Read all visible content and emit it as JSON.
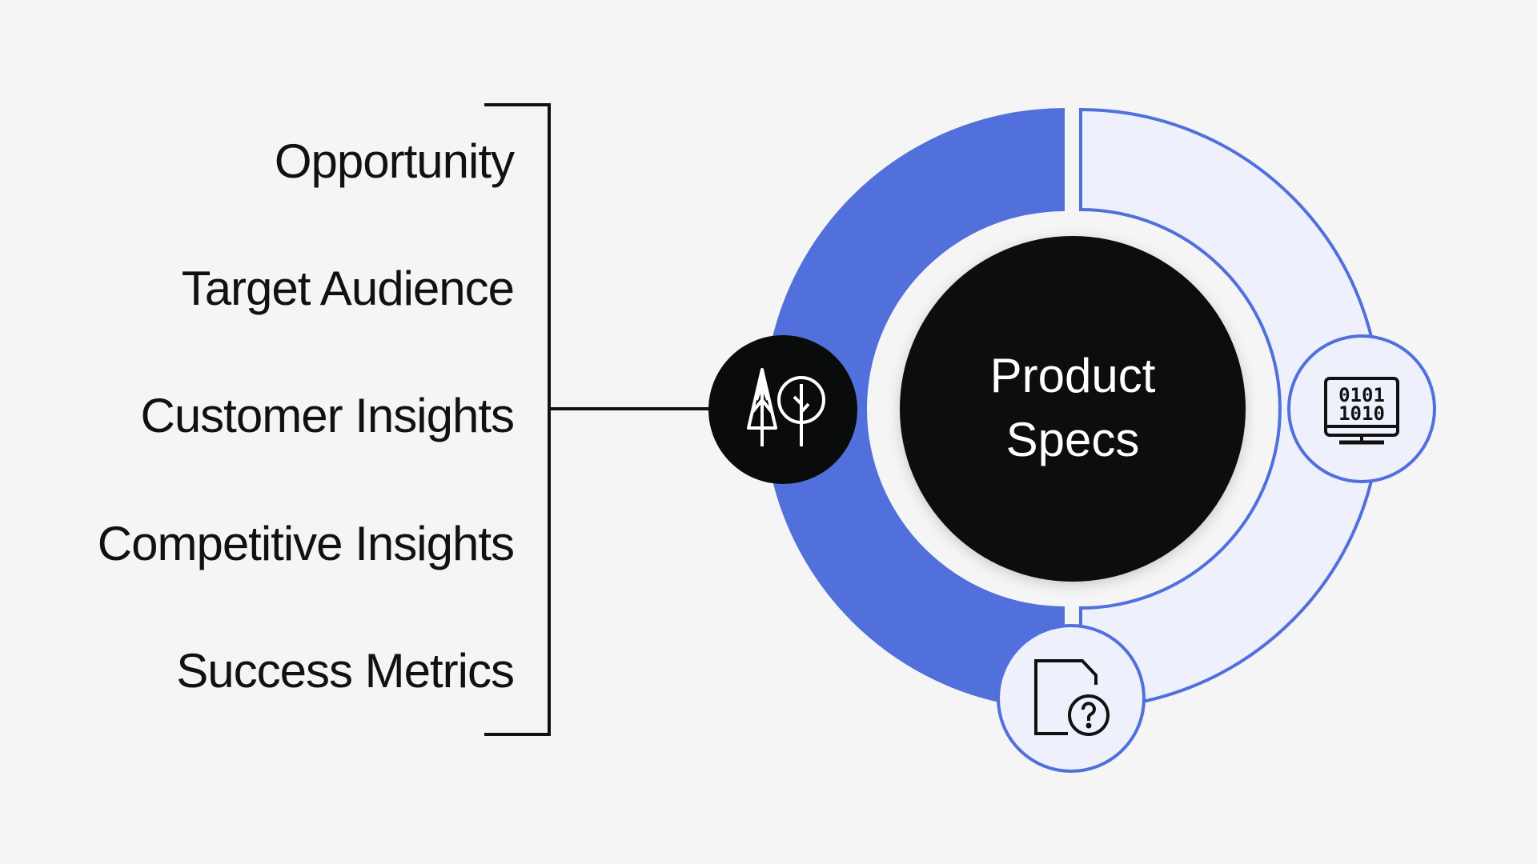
{
  "list": {
    "items": [
      "Opportunity",
      "Target Audience",
      "Customer Insights",
      "Competitive Insights",
      "Success Metrics"
    ]
  },
  "center": {
    "line1": "Product",
    "line2": "Specs"
  },
  "icons": {
    "left": "trees-icon",
    "right": "binary-monitor-icon",
    "bottom": "document-question-icon",
    "binary_row1": "0101",
    "binary_row2": "1010"
  },
  "colors": {
    "accent": "#5170DC",
    "light": "#EEF1FC",
    "dark": "#0A0C0B",
    "background": "#F5F5F5"
  }
}
